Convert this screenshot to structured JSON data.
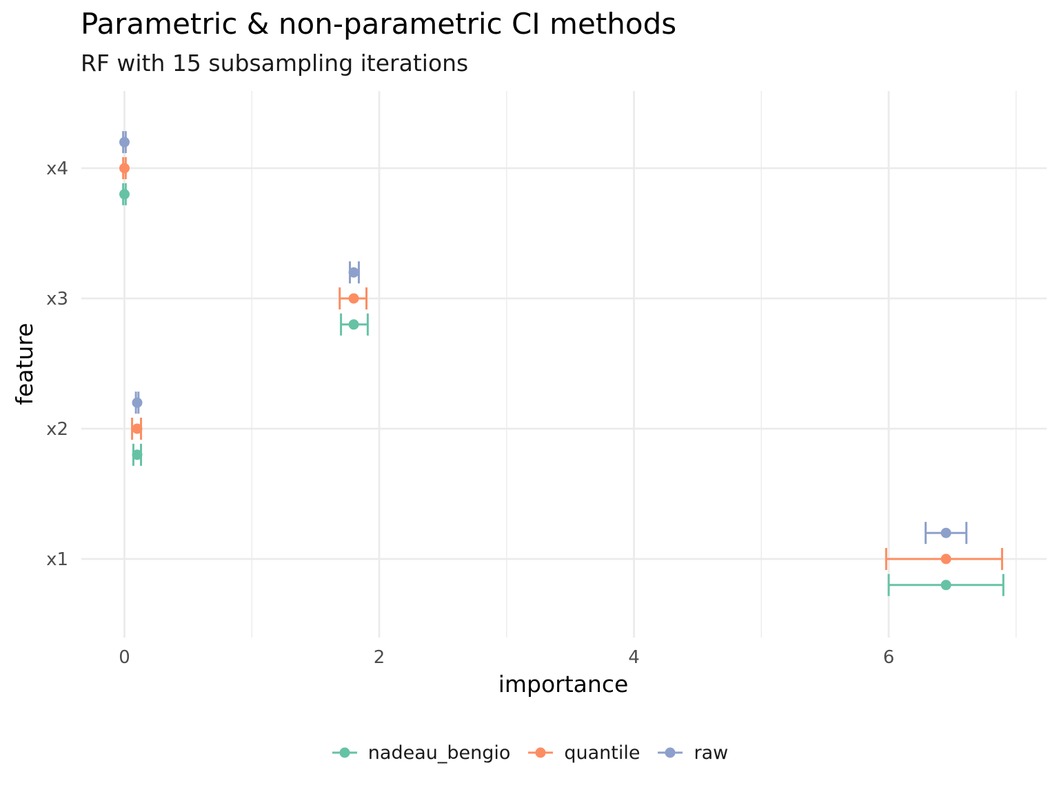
{
  "chart_data": {
    "type": "scatter",
    "title": "Parametric & non-parametric CI methods",
    "subtitle": "RF with 15 subsampling iterations",
    "xlabel": "importance",
    "ylabel": "feature",
    "xlim": [
      -0.35,
      7.2
    ],
    "x_ticks": [
      0,
      2,
      4,
      6
    ],
    "categories": [
      "x1",
      "x2",
      "x3",
      "x4"
    ],
    "grid": true,
    "legend_position": "bottom",
    "series": [
      {
        "name": "nadeau_bengio",
        "color": "#66C2A5",
        "points": [
          {
            "feature": "x1",
            "value": 6.45,
            "lower": 6.0,
            "upper": 6.9
          },
          {
            "feature": "x2",
            "value": 0.1,
            "lower": 0.07,
            "upper": 0.13
          },
          {
            "feature": "x3",
            "value": 1.8,
            "lower": 1.7,
            "upper": 1.91
          },
          {
            "feature": "x4",
            "value": 0.0,
            "lower": -0.01,
            "upper": 0.01
          }
        ]
      },
      {
        "name": "quantile",
        "color": "#FC8D62",
        "points": [
          {
            "feature": "x1",
            "value": 6.45,
            "lower": 5.98,
            "upper": 6.89
          },
          {
            "feature": "x2",
            "value": 0.1,
            "lower": 0.06,
            "upper": 0.13
          },
          {
            "feature": "x3",
            "value": 1.8,
            "lower": 1.69,
            "upper": 1.9
          },
          {
            "feature": "x4",
            "value": 0.0,
            "lower": -0.01,
            "upper": 0.01
          }
        ]
      },
      {
        "name": "raw",
        "color": "#8DA0CB",
        "points": [
          {
            "feature": "x1",
            "value": 6.45,
            "lower": 6.29,
            "upper": 6.61
          },
          {
            "feature": "x2",
            "value": 0.1,
            "lower": 0.09,
            "upper": 0.11
          },
          {
            "feature": "x3",
            "value": 1.8,
            "lower": 1.77,
            "upper": 1.84
          },
          {
            "feature": "x4",
            "value": 0.0,
            "lower": -0.01,
            "upper": 0.01
          }
        ]
      }
    ]
  }
}
